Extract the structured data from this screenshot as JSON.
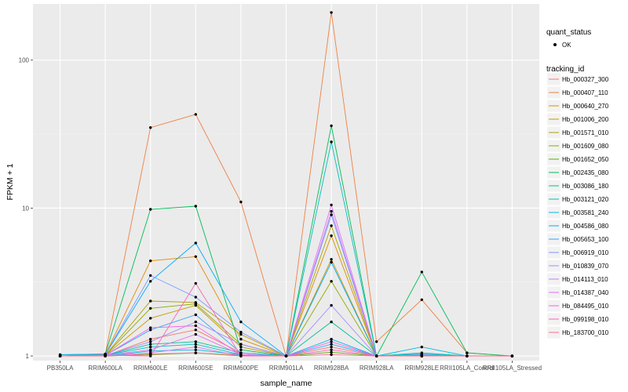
{
  "chart_data": {
    "type": "line",
    "xlabel": "sample_name",
    "ylabel": "FPKM + 1",
    "y_scale": "log10",
    "ylim": [
      0.93,
      240
    ],
    "y_ticks": [
      {
        "value": 1,
        "label": "1"
      },
      {
        "value": 10,
        "label": "10"
      },
      {
        "value": 100,
        "label": "100"
      }
    ],
    "categories": [
      "PB350LA",
      "RRIM600LA",
      "RRIM600LE",
      "RRIM600SE",
      "RRIM600PE",
      "RRIM901LA",
      "RRIM928BA",
      "RRIM928LA",
      "RRIM928LE",
      "RRII105LA_Control",
      "RRII105LA_Stressed"
    ],
    "grid": true,
    "legend_position": "right",
    "legend_shape": {
      "title": "quant_status",
      "items": [
        {
          "label": "OK"
        }
      ]
    },
    "legend_color_title": "tracking_id",
    "series": [
      {
        "name": "Hb_000327_300",
        "color": "#F8766D",
        "values": [
          1.0,
          1.0,
          1.3,
          1.5,
          1.05,
          1.0,
          1.15,
          1.0,
          1.02,
          1.0,
          1.0
        ]
      },
      {
        "name": "Hb_000407_110",
        "color": "#EE8043",
        "values": [
          1.02,
          1.03,
          35.0,
          43.0,
          11.0,
          1.0,
          210.0,
          1.25,
          2.4,
          1.05,
          1.0
        ]
      },
      {
        "name": "Hb_000640_270",
        "color": "#DE8C00",
        "values": [
          1.0,
          1.02,
          4.4,
          4.7,
          1.3,
          1.0,
          6.5,
          1.0,
          1.02,
          1.0,
          1.0
        ]
      },
      {
        "name": "Hb_001006_200",
        "color": "#C99800",
        "values": [
          1.0,
          1.01,
          1.8,
          2.2,
          1.15,
          1.0,
          4.5,
          1.0,
          1.01,
          1.0,
          1.0
        ]
      },
      {
        "name": "Hb_001571_010",
        "color": "#AFA100",
        "values": [
          1.0,
          1.01,
          2.35,
          2.3,
          1.4,
          1.0,
          7.6,
          1.0,
          1.01,
          1.0,
          1.0
        ]
      },
      {
        "name": "Hb_001609_080",
        "color": "#8BAB00",
        "values": [
          1.0,
          1.01,
          2.1,
          2.25,
          1.2,
          1.0,
          3.2,
          1.0,
          1.01,
          1.0,
          1.0
        ]
      },
      {
        "name": "Hb_001652_050",
        "color": "#53B400",
        "values": [
          1.0,
          1.0,
          1.02,
          1.05,
          1.0,
          1.0,
          1.06,
          1.0,
          1.0,
          1.0,
          1.0
        ]
      },
      {
        "name": "Hb_002435_080",
        "color": "#00BC56",
        "values": [
          1.02,
          1.03,
          9.8,
          10.3,
          1.1,
          1.0,
          36.0,
          1.0,
          3.7,
          1.05,
          1.0
        ]
      },
      {
        "name": "Hb_003086_180",
        "color": "#00C094",
        "values": [
          1.0,
          1.01,
          1.2,
          1.25,
          1.05,
          1.0,
          1.7,
          1.0,
          1.05,
          1.0,
          1.0
        ]
      },
      {
        "name": "Hb_003121_020",
        "color": "#00BFC4",
        "values": [
          1.0,
          1.01,
          1.15,
          1.2,
          1.02,
          1.0,
          28.0,
          1.0,
          1.03,
          1.0,
          1.0
        ]
      },
      {
        "name": "Hb_003581_240",
        "color": "#00B8E5",
        "values": [
          1.0,
          1.0,
          1.08,
          1.1,
          1.02,
          1.0,
          1.3,
          1.0,
          1.15,
          1.0,
          1.0
        ]
      },
      {
        "name": "Hb_004586_080",
        "color": "#00ACFC",
        "values": [
          1.02,
          1.02,
          3.2,
          5.8,
          1.7,
          1.0,
          4.3,
          1.0,
          1.0,
          1.0,
          1.0
        ]
      },
      {
        "name": "Hb_005653_100",
        "color": "#35A2FF",
        "values": [
          1.0,
          1.01,
          1.5,
          1.9,
          1.05,
          1.0,
          1.2,
          1.0,
          1.0,
          1.0,
          1.0
        ]
      },
      {
        "name": "Hb_006919_010",
        "color": "#7997FF",
        "values": [
          1.0,
          1.02,
          3.5,
          2.5,
          1.45,
          1.0,
          9.0,
          1.0,
          1.02,
          1.0,
          1.0
        ]
      },
      {
        "name": "Hb_010839_070",
        "color": "#A58AFF",
        "values": [
          1.0,
          1.01,
          1.25,
          1.7,
          1.2,
          1.0,
          2.2,
          1.0,
          1.0,
          1.0,
          1.0
        ]
      },
      {
        "name": "Hb_014113_010",
        "color": "#C77CFF",
        "values": [
          1.0,
          1.0,
          1.05,
          1.15,
          1.0,
          1.0,
          9.5,
          1.0,
          1.0,
          1.0,
          1.0
        ]
      },
      {
        "name": "Hb_014387_040",
        "color": "#E26EF7",
        "values": [
          1.0,
          1.01,
          1.1,
          1.4,
          1.02,
          1.0,
          10.5,
          1.0,
          1.0,
          1.0,
          1.0
        ]
      },
      {
        "name": "Hb_084495_010",
        "color": "#F563E3",
        "values": [
          1.0,
          1.01,
          1.55,
          1.6,
          1.02,
          1.0,
          1.25,
          1.0,
          1.0,
          1.0,
          1.0
        ]
      },
      {
        "name": "Hb_099198_010",
        "color": "#FF62BC",
        "values": [
          1.0,
          1.01,
          1.0,
          3.1,
          1.0,
          1.0,
          1.1,
          1.0,
          1.0,
          1.0,
          1.0
        ]
      },
      {
        "name": "Hb_183700_010",
        "color": "#FF6C91",
        "values": [
          1.0,
          1.0,
          1.03,
          1.05,
          1.01,
          1.0,
          1.02,
          1.0,
          1.0,
          1.0,
          1.0
        ]
      }
    ]
  }
}
